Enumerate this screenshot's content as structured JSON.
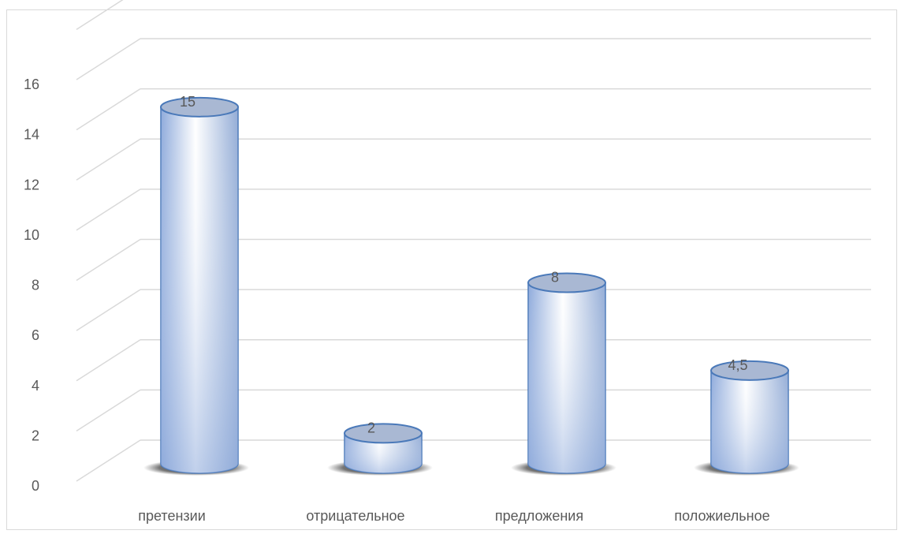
{
  "chart_data": {
    "type": "bar",
    "style": "3d-cylinder",
    "title": "",
    "xlabel": "",
    "ylabel": "",
    "categories": [
      "претензии",
      "отрицательное",
      "предложения",
      "положиельное"
    ],
    "values": [
      15,
      2,
      8,
      4.5
    ],
    "data_labels": [
      "15",
      "2",
      "8",
      "4,5"
    ],
    "ylim": [
      0,
      16
    ],
    "yticks": [
      "0",
      "2",
      "4",
      "6",
      "8",
      "10",
      "12",
      "14",
      "16"
    ],
    "grid": true,
    "legend": "none",
    "colors": {
      "bar_light": "#ffffff",
      "bar_mid": "#c9d9f4",
      "bar_dark": "#8eaadb",
      "bar_top": "#a9b8d3",
      "bar_outline": "#4a79b9",
      "grid": "#d9d9d9",
      "shadow": "#2b2b2b"
    }
  }
}
